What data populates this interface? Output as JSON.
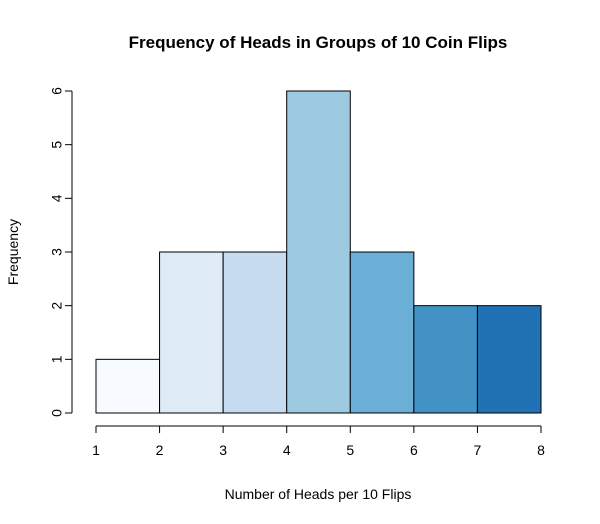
{
  "chart_data": {
    "type": "bar",
    "title": "Frequency of Heads in Groups of 10 Coin Flips",
    "xlabel": "Number of Heads per 10 Flips",
    "ylabel": "Frequency",
    "bins": [
      [
        1,
        2
      ],
      [
        2,
        3
      ],
      [
        3,
        4
      ],
      [
        4,
        5
      ],
      [
        5,
        6
      ],
      [
        6,
        7
      ],
      [
        7,
        8
      ]
    ],
    "values": [
      1,
      3,
      3,
      6,
      3,
      2,
      2
    ],
    "colors": [
      "#F7FBFF",
      "#DEEBF7",
      "#C6DBEF",
      "#9ECAE1",
      "#6BAED6",
      "#4292C6",
      "#2171B5"
    ],
    "xlim": [
      1,
      8
    ],
    "ylim": [
      0,
      6
    ],
    "x_ticks": [
      "1",
      "2",
      "3",
      "4",
      "5",
      "6",
      "7",
      "8"
    ],
    "y_ticks": [
      "0",
      "1",
      "2",
      "3",
      "4",
      "5",
      "6"
    ],
    "grid": false,
    "legend": "none"
  }
}
